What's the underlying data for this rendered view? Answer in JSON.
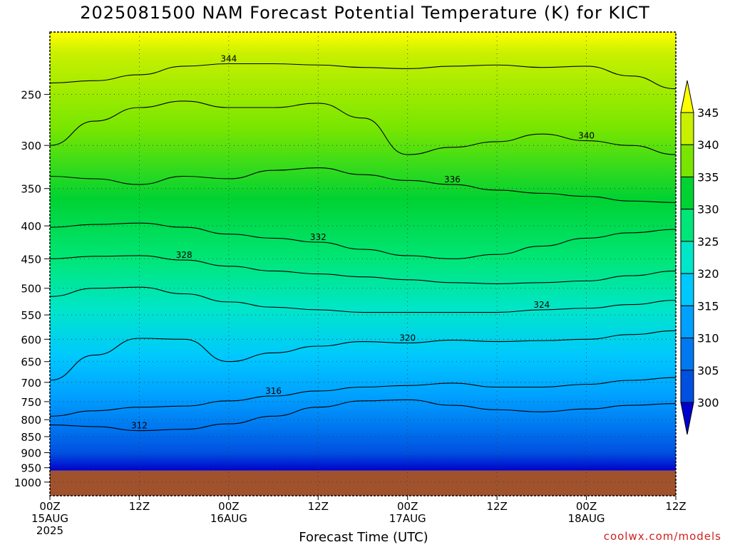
{
  "chart_data": {
    "type": "heatmap",
    "title": "2025081500 NAM Forecast Potential Temperature (K) for KICT",
    "xlabel": "Forecast Time (UTC)",
    "ylabel": "",
    "y_scale": "log-pressure",
    "y_ticks": [
      250,
      300,
      350,
      400,
      450,
      500,
      550,
      600,
      650,
      700,
      750,
      800,
      850,
      900,
      950,
      1000
    ],
    "ylim": [
      200,
      1050
    ],
    "surface_pressure": 960,
    "x_ticks": [
      {
        "hour": 0,
        "lines": [
          "00Z",
          "15AUG",
          "2025"
        ]
      },
      {
        "hour": 12,
        "lines": [
          "12Z"
        ]
      },
      {
        "hour": 24,
        "lines": [
          "00Z",
          "16AUG"
        ]
      },
      {
        "hour": 36,
        "lines": [
          "12Z"
        ]
      },
      {
        "hour": 48,
        "lines": [
          "00Z",
          "17AUG"
        ]
      },
      {
        "hour": 60,
        "lines": [
          "12Z"
        ]
      },
      {
        "hour": 72,
        "lines": [
          "00Z",
          "18AUG"
        ]
      },
      {
        "hour": 84,
        "lines": [
          "12Z"
        ]
      }
    ],
    "xlim": [
      0,
      84
    ],
    "grid": true,
    "colorbar": {
      "labels": [
        "300",
        "305",
        "310",
        "315",
        "320",
        "325",
        "330",
        "335",
        "340",
        "345"
      ],
      "colors": [
        "#0000cc",
        "#0050e0",
        "#0078f0",
        "#00a0ff",
        "#00c8ff",
        "#00e6c8",
        "#00e678",
        "#00d232",
        "#78e600",
        "#c8f000",
        "#ffff00"
      ],
      "placement": "right"
    },
    "contours": [
      {
        "value": 312,
        "label": "312",
        "points": [
          [
            0,
            815
          ],
          [
            6,
            820
          ],
          [
            12,
            832
          ],
          [
            18,
            828
          ],
          [
            24,
            812
          ],
          [
            30,
            790
          ],
          [
            36,
            765
          ],
          [
            42,
            748
          ],
          [
            48,
            745
          ],
          [
            54,
            760
          ],
          [
            60,
            772
          ],
          [
            66,
            778
          ],
          [
            72,
            770
          ],
          [
            78,
            760
          ],
          [
            84,
            755
          ]
        ]
      },
      {
        "value": 316,
        "label": "316",
        "points": [
          [
            0,
            790
          ],
          [
            6,
            775
          ],
          [
            12,
            765
          ],
          [
            18,
            762
          ],
          [
            24,
            748
          ],
          [
            30,
            735
          ],
          [
            36,
            722
          ],
          [
            42,
            712
          ],
          [
            48,
            708
          ],
          [
            54,
            702
          ],
          [
            60,
            712
          ],
          [
            66,
            712
          ],
          [
            72,
            705
          ],
          [
            78,
            695
          ],
          [
            84,
            688
          ]
        ]
      },
      {
        "value": 320,
        "label": "320",
        "points": [
          [
            0,
            695
          ],
          [
            6,
            635
          ],
          [
            12,
            598
          ],
          [
            18,
            600
          ],
          [
            24,
            650
          ],
          [
            30,
            630
          ],
          [
            36,
            615
          ],
          [
            42,
            605
          ],
          [
            48,
            608
          ],
          [
            54,
            602
          ],
          [
            60,
            605
          ],
          [
            66,
            603
          ],
          [
            72,
            600
          ],
          [
            78,
            590
          ],
          [
            84,
            582
          ]
        ]
      },
      {
        "value": 324,
        "label": "324",
        "points": [
          [
            0,
            515
          ],
          [
            6,
            500
          ],
          [
            12,
            498
          ],
          [
            18,
            510
          ],
          [
            24,
            525
          ],
          [
            30,
            535
          ],
          [
            36,
            540
          ],
          [
            42,
            545
          ],
          [
            48,
            545
          ],
          [
            54,
            545
          ],
          [
            60,
            545
          ],
          [
            66,
            540
          ],
          [
            72,
            537
          ],
          [
            78,
            530
          ],
          [
            84,
            522
          ]
        ]
      },
      {
        "value": 328,
        "label": "328",
        "points": [
          [
            0,
            450
          ],
          [
            6,
            446
          ],
          [
            12,
            445
          ],
          [
            18,
            452
          ],
          [
            24,
            462
          ],
          [
            30,
            470
          ],
          [
            36,
            475
          ],
          [
            42,
            480
          ],
          [
            48,
            485
          ],
          [
            54,
            490
          ],
          [
            60,
            492
          ],
          [
            66,
            490
          ],
          [
            72,
            487
          ],
          [
            78,
            478
          ],
          [
            84,
            470
          ]
        ]
      },
      {
        "value": 332,
        "label": "332",
        "points": [
          [
            0,
            402
          ],
          [
            6,
            398
          ],
          [
            12,
            396
          ],
          [
            18,
            402
          ],
          [
            24,
            412
          ],
          [
            30,
            418
          ],
          [
            36,
            424
          ],
          [
            42,
            435
          ],
          [
            48,
            445
          ],
          [
            54,
            450
          ],
          [
            60,
            443
          ],
          [
            66,
            430
          ],
          [
            72,
            418
          ],
          [
            78,
            410
          ],
          [
            84,
            405
          ]
        ]
      },
      {
        "value": 336,
        "label": "336",
        "points": [
          [
            0,
            335
          ],
          [
            6,
            338
          ],
          [
            12,
            345
          ],
          [
            18,
            335
          ],
          [
            24,
            338
          ],
          [
            30,
            328
          ],
          [
            36,
            325
          ],
          [
            42,
            333
          ],
          [
            48,
            340
          ],
          [
            54,
            345
          ],
          [
            60,
            352
          ],
          [
            66,
            356
          ],
          [
            72,
            360
          ],
          [
            78,
            366
          ],
          [
            84,
            368
          ]
        ]
      },
      {
        "value": 340,
        "label": "340",
        "points": [
          [
            0,
            300
          ],
          [
            6,
            275
          ],
          [
            12,
            262
          ],
          [
            18,
            256
          ],
          [
            24,
            262
          ],
          [
            30,
            262
          ],
          [
            36,
            258
          ],
          [
            42,
            272
          ],
          [
            48,
            310
          ],
          [
            54,
            302
          ],
          [
            60,
            296
          ],
          [
            66,
            288
          ],
          [
            72,
            295
          ],
          [
            78,
            300
          ],
          [
            84,
            310
          ]
        ]
      },
      {
        "value": 344,
        "label": "344",
        "points": [
          [
            0,
            240
          ],
          [
            6,
            238
          ],
          [
            12,
            233
          ],
          [
            18,
            226
          ],
          [
            24,
            224
          ],
          [
            30,
            224
          ],
          [
            36,
            225
          ],
          [
            42,
            227
          ],
          [
            48,
            228
          ],
          [
            54,
            226
          ],
          [
            60,
            225
          ],
          [
            66,
            227
          ],
          [
            72,
            226
          ],
          [
            78,
            234
          ],
          [
            84,
            245
          ]
        ]
      }
    ]
  },
  "credit": "coolwx.com/models"
}
